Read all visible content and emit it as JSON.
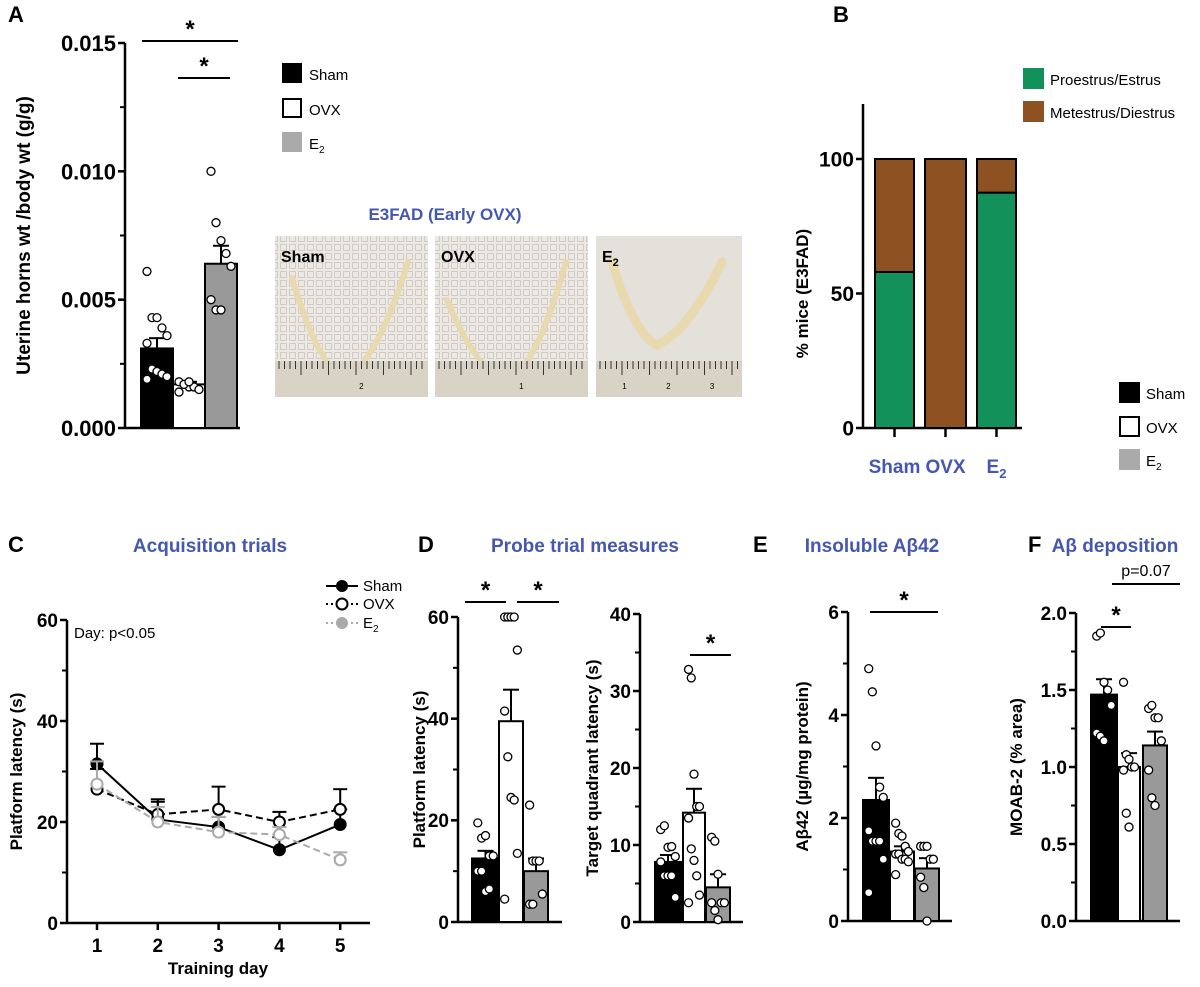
{
  "colors": {
    "sham": "#000000",
    "ovx": "#ffffff",
    "e2": "#999999",
    "title_blue": "#4657b0",
    "proestrus": "#12915a",
    "metestrus": "#8e5222"
  },
  "groups": {
    "sham": "Sham",
    "ovx": "OVX",
    "e2": "E",
    "e2_sub": "2"
  },
  "panel_labels": {
    "a": "A",
    "b": "B",
    "c": "C",
    "d": "D",
    "e": "E",
    "f": "F"
  },
  "photos": {
    "title": "E3FAD (Early OVX)",
    "labels": [
      "Sham",
      "OVX",
      "E"
    ],
    "e2_sub": "2",
    "ruler_numbers": [
      [
        "2"
      ],
      [
        "1"
      ],
      [
        "1",
        "2",
        "3"
      ]
    ]
  },
  "chart_data": [
    {
      "id": "A",
      "type": "bar",
      "ylabel": "Uterine horns wt /body wt (g/g)",
      "ylim": [
        0,
        0.015
      ],
      "yticks": [
        "0.000",
        "0.005",
        "0.010",
        "0.015"
      ],
      "ytick_values": [
        0,
        0.005,
        0.01,
        0.015
      ],
      "categories": [
        "Sham",
        "OVX",
        "E2"
      ],
      "values": [
        0.0031,
        0.0017,
        0.0064
      ],
      "sem": [
        0.0004,
        0.0001,
        0.0007
      ],
      "points": [
        [
          0.0061,
          0.0043,
          0.0043,
          0.0039,
          0.0036,
          0.0033,
          0.0023,
          0.0022,
          0.0021,
          0.002,
          0.0019
        ],
        [
          0.0018,
          0.0017,
          0.0016,
          0.0016,
          0.0015,
          0.0014,
          0.0017,
          0.0018
        ],
        [
          0.01,
          0.008,
          0.0073,
          0.0068,
          0.0063,
          0.005,
          0.0046,
          0.0046
        ]
      ],
      "significance": [
        {
          "groups": [
            "Sham",
            "E2"
          ],
          "label": "*"
        },
        {
          "groups": [
            "OVX",
            "E2"
          ],
          "label": "*"
        }
      ]
    },
    {
      "id": "B",
      "type": "stacked-bar",
      "ylabel": "% mice (E3FAD)",
      "ylim": [
        0,
        100
      ],
      "yticks": [
        "0",
        "50",
        "100"
      ],
      "ytick_values": [
        0,
        50,
        100
      ],
      "categories": [
        "Sham",
        "OVX",
        "E2"
      ],
      "series": [
        {
          "name": "Proestrus/Estrus",
          "values": [
            58,
            0,
            87.5
          ]
        },
        {
          "name": "Metestrus/Diestrus",
          "values": [
            42,
            100,
            12.5
          ]
        }
      ]
    },
    {
      "id": "C",
      "type": "line",
      "title": "Acquisition trials",
      "xlabel": "Training day",
      "ylabel": "Platform latency (s)",
      "ylim": [
        0,
        60
      ],
      "yticks": [
        "0",
        "20",
        "40",
        "60"
      ],
      "ytick_values": [
        0,
        20,
        40,
        60
      ],
      "x": [
        1,
        2,
        3,
        4,
        5
      ],
      "xticks": [
        "1",
        "2",
        "3",
        "4",
        "5"
      ],
      "annotation": "Day: p<0.05",
      "series": [
        {
          "name": "Sham",
          "values": [
            31.5,
            20.5,
            19,
            14.5,
            19.5
          ],
          "sem": [
            4,
            3.5,
            2,
            2.5,
            3
          ]
        },
        {
          "name": "OVX",
          "values": [
            26.5,
            21.5,
            22.5,
            20,
            22.5
          ],
          "sem": [
            4,
            3,
            4.5,
            2,
            4
          ]
        },
        {
          "name": "E2",
          "values": [
            27.5,
            20,
            18,
            17.5,
            12.5
          ],
          "sem": [
            4.5,
            3,
            3,
            1.5,
            1.5
          ]
        }
      ]
    },
    {
      "id": "D1",
      "type": "bar",
      "title": "Probe trial measures",
      "ylabel": "Platform latency (s)",
      "ylim": [
        0,
        60
      ],
      "yticks": [
        "0",
        "20",
        "40",
        "60"
      ],
      "ytick_values": [
        0,
        20,
        40,
        60
      ],
      "categories": [
        "Sham",
        "OVX",
        "E2"
      ],
      "values": [
        12.5,
        39.5,
        10
      ],
      "sem": [
        1.5,
        6.2,
        2.5
      ],
      "points": [
        [
          19.5,
          16.5,
          17,
          13,
          13,
          10,
          10,
          6,
          6.5
        ],
        [
          60,
          60,
          60,
          60,
          53.5,
          41.5,
          32.5,
          24.5,
          24,
          13.5,
          4.5
        ],
        [
          23,
          12,
          12,
          12,
          5.5,
          3.5,
          3.5
        ]
      ],
      "significance": [
        {
          "groups": [
            "Sham",
            "OVX"
          ],
          "label": "*"
        },
        {
          "groups": [
            "OVX",
            "E2"
          ],
          "label": "*"
        }
      ]
    },
    {
      "id": "D2",
      "type": "bar",
      "ylabel": "Target quadrant  latency (s)",
      "ylim": [
        0,
        40
      ],
      "yticks": [
        "0",
        "10",
        "20",
        "30",
        "40"
      ],
      "ytick_values": [
        0,
        10,
        20,
        30,
        40
      ],
      "categories": [
        "Sham",
        "OVX",
        "E2"
      ],
      "values": [
        7.8,
        14.2,
        4.5
      ],
      "sem": [
        0.9,
        3.1,
        1.7
      ],
      "points": [
        [
          12,
          12.5,
          9.7,
          9.8,
          8.5,
          7.8,
          6,
          6,
          6,
          3.2
        ],
        [
          32.8,
          31.7,
          19.2,
          15,
          15,
          13.5,
          9.5,
          8,
          6,
          3.5,
          2.5
        ],
        [
          11,
          10.5,
          6.2,
          2.5,
          2.5,
          2.5,
          1.5,
          0.3
        ]
      ],
      "significance": [
        {
          "groups": [
            "OVX",
            "E2"
          ],
          "label": "*"
        }
      ]
    },
    {
      "id": "E",
      "type": "bar",
      "title": "Insoluble Aβ42",
      "ylabel": "Aβ42 (µg/mg protein)",
      "ylim": [
        0,
        6
      ],
      "yticks": [
        "0",
        "2",
        "4",
        "6"
      ],
      "ytick_values": [
        0,
        2,
        4,
        6
      ],
      "categories": [
        "Sham",
        "OVX",
        "E2"
      ],
      "values": [
        2.35,
        1.35,
        1.02
      ],
      "sem": [
        0.43,
        0.1,
        0.2
      ],
      "points": [
        [
          4.9,
          4.45,
          3.4,
          2.6,
          2.4,
          1.75,
          1.55,
          1.55,
          1.55,
          1.2,
          0.55
        ],
        [
          1.9,
          1.7,
          1.65,
          1.45,
          1.35,
          1.3,
          1.3,
          1.2,
          1.2,
          1.15,
          0.9
        ],
        [
          1.45,
          1.45,
          1.45,
          1.2,
          1.2,
          0.85,
          0.65,
          0
        ]
      ],
      "significance": [
        {
          "groups": [
            "Sham",
            "E2"
          ],
          "label": "*"
        }
      ]
    },
    {
      "id": "F",
      "type": "bar",
      "title": "Aβ deposition",
      "ylabel": "MOAB-2 (% area)",
      "ylim": [
        0,
        2
      ],
      "yticks": [
        "0.0",
        "0.5",
        "1.0",
        "1.5",
        "2.0"
      ],
      "ytick_values": [
        0,
        0.5,
        1,
        1.5,
        2
      ],
      "categories": [
        "Sham",
        "OVX",
        "E2"
      ],
      "values": [
        1.47,
        1.0,
        1.14
      ],
      "sem": [
        0.1,
        0.09,
        0.09
      ],
      "points": [
        [
          1.85,
          1.87,
          1.55,
          1.5,
          1.4,
          1.22,
          1.2,
          1.17
        ],
        [
          1.55,
          1.08,
          1.05,
          1.0,
          1.0,
          0.98,
          0.7,
          0.61
        ],
        [
          1.38,
          1.4,
          1.32,
          1.32,
          1.17,
          0.98,
          0.8,
          0.75
        ]
      ],
      "significance": [
        {
          "groups": [
            "Sham",
            "OVX"
          ],
          "label": "*"
        },
        {
          "groups": [
            "OVX",
            "E2"
          ],
          "label": "p=0.07"
        }
      ]
    }
  ]
}
